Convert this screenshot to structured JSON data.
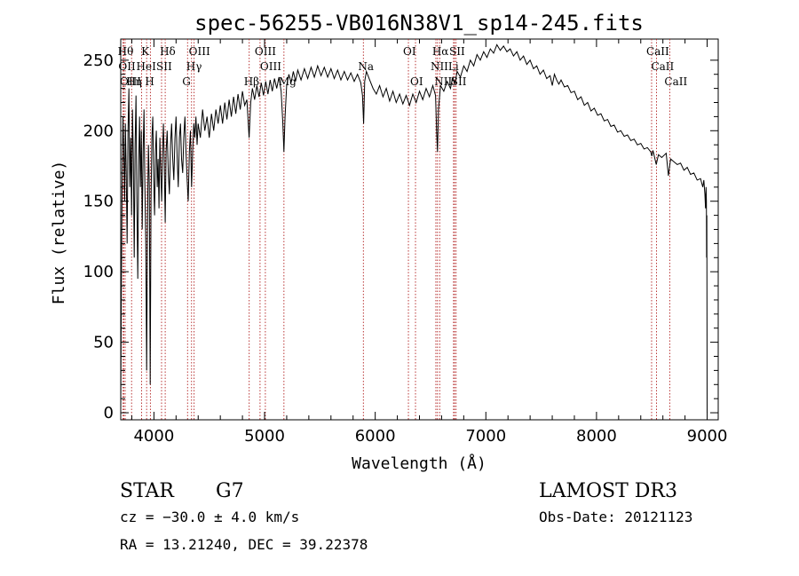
{
  "chart_data": {
    "type": "line",
    "title": "spec-56255-VB016N38V1_sp14-245.fits",
    "xlabel": "Wavelength (Å)",
    "ylabel": "Flux (relative)",
    "xlim": [
      3700,
      9100
    ],
    "ylim": [
      -5,
      265
    ],
    "xticks": [
      4000,
      5000,
      6000,
      7000,
      8000,
      9000
    ],
    "yticks": [
      0,
      50,
      100,
      150,
      200,
      250
    ],
    "series": [
      {
        "name": "flux",
        "points": [
          [
            3700,
            0
          ],
          [
            3705,
            80
          ],
          [
            3712,
            160
          ],
          [
            3720,
            210
          ],
          [
            3728,
            185
          ],
          [
            3735,
            150
          ],
          [
            3742,
            205
          ],
          [
            3750,
            170
          ],
          [
            3758,
            120
          ],
          [
            3766,
            200
          ],
          [
            3774,
            230
          ],
          [
            3782,
            160
          ],
          [
            3790,
            195
          ],
          [
            3798,
            140
          ],
          [
            3806,
            215
          ],
          [
            3814,
            180
          ],
          [
            3822,
            110
          ],
          [
            3830,
            190
          ],
          [
            3838,
            225
          ],
          [
            3846,
            150
          ],
          [
            3854,
            95
          ],
          [
            3862,
            175
          ],
          [
            3870,
            210
          ],
          [
            3878,
            160
          ],
          [
            3886,
            200
          ],
          [
            3894,
            130
          ],
          [
            3902,
            185
          ],
          [
            3910,
            215
          ],
          [
            3918,
            160
          ],
          [
            3926,
            120
          ],
          [
            3934,
            30
          ],
          [
            3942,
            140
          ],
          [
            3950,
            190
          ],
          [
            3958,
            160
          ],
          [
            3966,
            20
          ],
          [
            3974,
            150
          ],
          [
            3982,
            195
          ],
          [
            3990,
            210
          ],
          [
            3998,
            165
          ],
          [
            4006,
            140
          ],
          [
            4014,
            185
          ],
          [
            4022,
            200
          ],
          [
            4030,
            160
          ],
          [
            4038,
            180
          ],
          [
            4046,
            145
          ],
          [
            4054,
            195
          ],
          [
            4062,
            170
          ],
          [
            4070,
            150
          ],
          [
            4078,
            185
          ],
          [
            4086,
            205
          ],
          [
            4094,
            175
          ],
          [
            4102,
            135
          ],
          [
            4110,
            185
          ],
          [
            4120,
            200
          ],
          [
            4130,
            170
          ],
          [
            4140,
            155
          ],
          [
            4150,
            190
          ],
          [
            4160,
            205
          ],
          [
            4170,
            180
          ],
          [
            4180,
            165
          ],
          [
            4190,
            195
          ],
          [
            4200,
            210
          ],
          [
            4210,
            180
          ],
          [
            4220,
            160
          ],
          [
            4230,
            195
          ],
          [
            4240,
            205
          ],
          [
            4250,
            180
          ],
          [
            4260,
            170
          ],
          [
            4270,
            195
          ],
          [
            4280,
            210
          ],
          [
            4290,
            185
          ],
          [
            4300,
            165
          ],
          [
            4310,
            150
          ],
          [
            4320,
            185
          ],
          [
            4330,
            200
          ],
          [
            4340,
            160
          ],
          [
            4350,
            185
          ],
          [
            4360,
            205
          ],
          [
            4370,
            195
          ],
          [
            4380,
            210
          ],
          [
            4390,
            190
          ],
          [
            4400,
            205
          ],
          [
            4420,
            195
          ],
          [
            4440,
            215
          ],
          [
            4460,
            200
          ],
          [
            4480,
            210
          ],
          [
            4500,
            195
          ],
          [
            4520,
            212
          ],
          [
            4540,
            200
          ],
          [
            4560,
            215
          ],
          [
            4580,
            205
          ],
          [
            4600,
            218
          ],
          [
            4620,
            205
          ],
          [
            4640,
            220
          ],
          [
            4660,
            208
          ],
          [
            4680,
            222
          ],
          [
            4700,
            210
          ],
          [
            4720,
            224
          ],
          [
            4740,
            212
          ],
          [
            4760,
            226
          ],
          [
            4780,
            215
          ],
          [
            4800,
            228
          ],
          [
            4820,
            218
          ],
          [
            4840,
            222
          ],
          [
            4860,
            195
          ],
          [
            4875,
            220
          ],
          [
            4890,
            230
          ],
          [
            4910,
            222
          ],
          [
            4930,
            232
          ],
          [
            4950,
            224
          ],
          [
            4970,
            234
          ],
          [
            4990,
            225
          ],
          [
            5010,
            235
          ],
          [
            5030,
            226
          ],
          [
            5050,
            236
          ],
          [
            5070,
            228
          ],
          [
            5090,
            237
          ],
          [
            5110,
            230
          ],
          [
            5130,
            238
          ],
          [
            5150,
            228
          ],
          [
            5165,
            205
          ],
          [
            5175,
            185
          ],
          [
            5185,
            210
          ],
          [
            5200,
            232
          ],
          [
            5220,
            240
          ],
          [
            5240,
            234
          ],
          [
            5260,
            242
          ],
          [
            5280,
            235
          ],
          [
            5300,
            243
          ],
          [
            5330,
            236
          ],
          [
            5360,
            244
          ],
          [
            5390,
            237
          ],
          [
            5420,
            245
          ],
          [
            5450,
            238
          ],
          [
            5480,
            246
          ],
          [
            5510,
            239
          ],
          [
            5540,
            245
          ],
          [
            5570,
            238
          ],
          [
            5600,
            244
          ],
          [
            5630,
            237
          ],
          [
            5660,
            243
          ],
          [
            5690,
            236
          ],
          [
            5720,
            242
          ],
          [
            5750,
            236
          ],
          [
            5780,
            241
          ],
          [
            5810,
            235
          ],
          [
            5840,
            240
          ],
          [
            5870,
            234
          ],
          [
            5885,
            225
          ],
          [
            5895,
            205
          ],
          [
            5905,
            235
          ],
          [
            5920,
            242
          ],
          [
            5950,
            236
          ],
          [
            5980,
            230
          ],
          [
            6010,
            226
          ],
          [
            6040,
            232
          ],
          [
            6070,
            224
          ],
          [
            6100,
            230
          ],
          [
            6130,
            221
          ],
          [
            6160,
            228
          ],
          [
            6190,
            220
          ],
          [
            6220,
            226
          ],
          [
            6250,
            219
          ],
          [
            6280,
            225
          ],
          [
            6310,
            218
          ],
          [
            6340,
            226
          ],
          [
            6370,
            220
          ],
          [
            6400,
            228
          ],
          [
            6430,
            222
          ],
          [
            6460,
            230
          ],
          [
            6490,
            224
          ],
          [
            6520,
            232
          ],
          [
            6545,
            225
          ],
          [
            6555,
            200
          ],
          [
            6563,
            185
          ],
          [
            6572,
            215
          ],
          [
            6590,
            232
          ],
          [
            6620,
            228
          ],
          [
            6650,
            235
          ],
          [
            6680,
            230
          ],
          [
            6700,
            238
          ],
          [
            6720,
            233
          ],
          [
            6740,
            242
          ],
          [
            6770,
            238
          ],
          [
            6800,
            246
          ],
          [
            6830,
            242
          ],
          [
            6860,
            250
          ],
          [
            6890,
            246
          ],
          [
            6920,
            254
          ],
          [
            6950,
            250
          ],
          [
            6980,
            256
          ],
          [
            7010,
            252
          ],
          [
            7040,
            258
          ],
          [
            7070,
            255
          ],
          [
            7100,
            261
          ],
          [
            7130,
            257
          ],
          [
            7160,
            260
          ],
          [
            7190,
            256
          ],
          [
            7220,
            258
          ],
          [
            7250,
            253
          ],
          [
            7280,
            256
          ],
          [
            7310,
            250
          ],
          [
            7340,
            253
          ],
          [
            7370,
            247
          ],
          [
            7400,
            250
          ],
          [
            7430,
            244
          ],
          [
            7460,
            246
          ],
          [
            7490,
            240
          ],
          [
            7520,
            243
          ],
          [
            7550,
            237
          ],
          [
            7580,
            239
          ],
          [
            7600,
            232
          ],
          [
            7620,
            240
          ],
          [
            7640,
            236
          ],
          [
            7660,
            233
          ],
          [
            7680,
            236
          ],
          [
            7710,
            231
          ],
          [
            7740,
            232
          ],
          [
            7770,
            227
          ],
          [
            7800,
            228
          ],
          [
            7830,
            222
          ],
          [
            7860,
            224
          ],
          [
            7890,
            218
          ],
          [
            7920,
            220
          ],
          [
            7950,
            214
          ],
          [
            7980,
            216
          ],
          [
            8010,
            211
          ],
          [
            8040,
            212
          ],
          [
            8070,
            207
          ],
          [
            8100,
            208
          ],
          [
            8130,
            203
          ],
          [
            8160,
            204
          ],
          [
            8190,
            199
          ],
          [
            8220,
            200
          ],
          [
            8250,
            196
          ],
          [
            8280,
            197
          ],
          [
            8310,
            193
          ],
          [
            8340,
            194
          ],
          [
            8370,
            190
          ],
          [
            8400,
            191
          ],
          [
            8430,
            187
          ],
          [
            8460,
            188
          ],
          [
            8490,
            185
          ],
          [
            8500,
            182
          ],
          [
            8510,
            186
          ],
          [
            8540,
            176
          ],
          [
            8560,
            183
          ],
          [
            8590,
            181
          ],
          [
            8630,
            184
          ],
          [
            8650,
            168
          ],
          [
            8670,
            180
          ],
          [
            8700,
            178
          ],
          [
            8730,
            176
          ],
          [
            8760,
            177
          ],
          [
            8790,
            172
          ],
          [
            8820,
            174
          ],
          [
            8850,
            169
          ],
          [
            8880,
            170
          ],
          [
            8910,
            165
          ],
          [
            8940,
            166
          ],
          [
            8960,
            160
          ],
          [
            8970,
            165
          ],
          [
            8980,
            155
          ],
          [
            8985,
            145
          ],
          [
            8990,
            160
          ],
          [
            8993,
            150
          ],
          [
            8995,
            110
          ],
          [
            8997,
            140
          ],
          [
            9000,
            0
          ]
        ]
      }
    ],
    "annotations": [
      {
        "label": "Hθ",
        "wavelength": 3721,
        "row": 1
      },
      {
        "label": "OII",
        "wavelength": 3727,
        "row": 2
      },
      {
        "label": "OIII",
        "wavelength": 3740,
        "row": 3
      },
      {
        "label": "Hη",
        "wavelength": 3798,
        "row": 3
      },
      {
        "label": "HeI",
        "wavelength": 3889,
        "row": 2
      },
      {
        "label": "K",
        "wavelength": 3934,
        "row": 1
      },
      {
        "label": "H",
        "wavelength": 3968,
        "row": 3
      },
      {
        "label": "SII",
        "wavelength": 4069,
        "row": 2
      },
      {
        "label": "Hδ",
        "wavelength": 4102,
        "row": 1
      },
      {
        "label": "OIII",
        "wavelength": 4363,
        "row": 1
      },
      {
        "label": "Hγ",
        "wavelength": 4340,
        "row": 2
      },
      {
        "label": "G",
        "wavelength": 4304,
        "row": 3
      },
      {
        "label": "Hβ",
        "wavelength": 4861,
        "row": 3
      },
      {
        "label": "OIII",
        "wavelength": 4959,
        "row": 1
      },
      {
        "label": "OIII",
        "wavelength": 5007,
        "row": 2
      },
      {
        "label": "Mg",
        "wavelength": 5175,
        "row": 3
      },
      {
        "label": "Na",
        "wavelength": 5893,
        "row": 2
      },
      {
        "label": "OI",
        "wavelength": 6300,
        "row": 1
      },
      {
        "label": "OI",
        "wavelength": 6364,
        "row": 3
      },
      {
        "label": "Hα",
        "wavelength": 6563,
        "row": 1
      },
      {
        "label": "NII",
        "wavelength": 6548,
        "row": 2
      },
      {
        "label": "NII",
        "wavelength": 6583,
        "row": 3
      },
      {
        "label": "SII",
        "wavelength": 6717,
        "row": 1
      },
      {
        "label": "Li",
        "wavelength": 6708,
        "row": 2
      },
      {
        "label": "SII",
        "wavelength": 6731,
        "row": 3
      },
      {
        "label": "CaII",
        "wavelength": 8498,
        "row": 1
      },
      {
        "label": "CaII",
        "wavelength": 8542,
        "row": 2
      },
      {
        "label": "CaII",
        "wavelength": 8662,
        "row": 3
      }
    ]
  },
  "info": {
    "object_class": "STAR",
    "subclass": "G7",
    "redshift": "cz = −30.0 ± 4.0 km/s",
    "coordinates": "RA =  13.21240, DEC =  39.22378",
    "survey": "LAMOST DR3",
    "obs_date": "Obs-Date: 20121123"
  },
  "colors": {
    "spectrum": "#000000",
    "line_markers": "#b22222"
  }
}
